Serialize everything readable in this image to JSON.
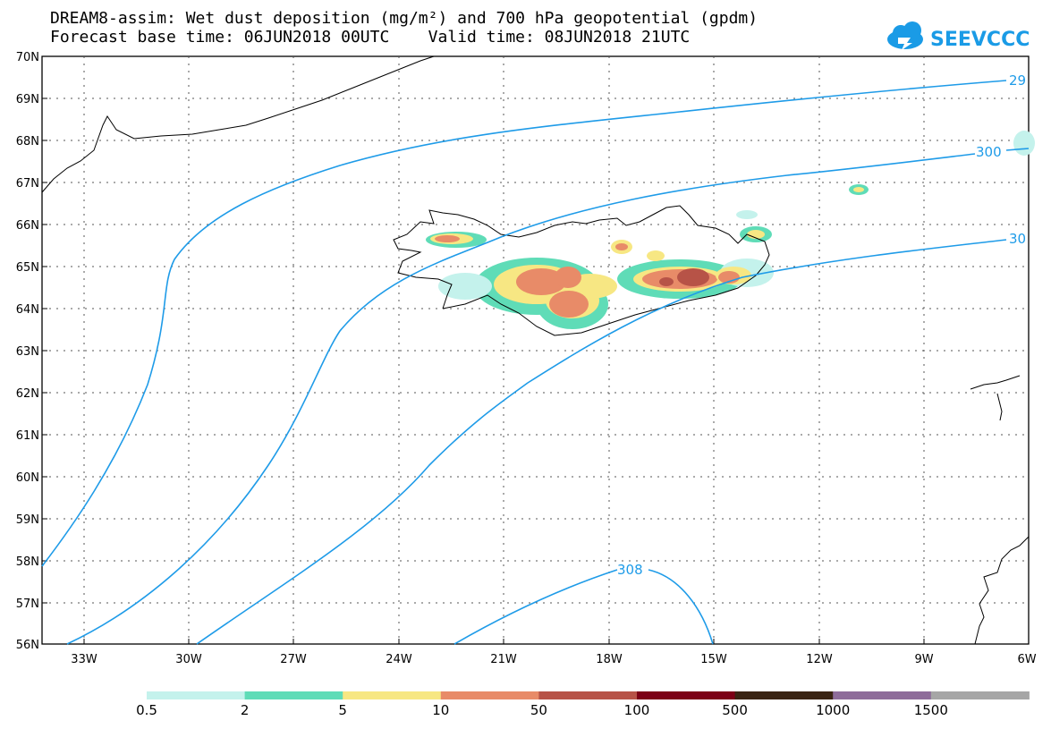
{
  "header": {
    "title_line1": "DREAM8-assim: Wet dust deposition (mg/m²) and 700 hPa geopotential (gpdm)",
    "title_line2": "Forecast base time: 06JUN2018 00UTC    Valid time: 08JUN2018 21UTC"
  },
  "logo": {
    "text": "SEEVCCC",
    "icon": "cloud-icon",
    "color": "#1a9be6"
  },
  "map": {
    "lat_labels": [
      "70N",
      "69N",
      "68N",
      "67N",
      "66N",
      "65N",
      "64N",
      "63N",
      "62N",
      "61N",
      "60N",
      "59N",
      "58N",
      "57N",
      "56N"
    ],
    "lon_labels": [
      "33W",
      "30W",
      "27W",
      "24W",
      "21W",
      "18W",
      "15W",
      "12W",
      "9W",
      "6W"
    ],
    "contour_labels": [
      "29",
      "300",
      "30",
      "308"
    ],
    "contour_color": "#1e9be8"
  },
  "legend": {
    "colors": [
      "#c4f2ec",
      "#5fdcb7",
      "#f7e783",
      "#e88b68",
      "#b75347",
      "#7c0016",
      "#3a2413",
      "#8e6c9a",
      "#a6a6a6"
    ],
    "labels": [
      "0.5",
      "2",
      "5",
      "10",
      "50",
      "100",
      "500",
      "1000",
      "1500"
    ]
  }
}
